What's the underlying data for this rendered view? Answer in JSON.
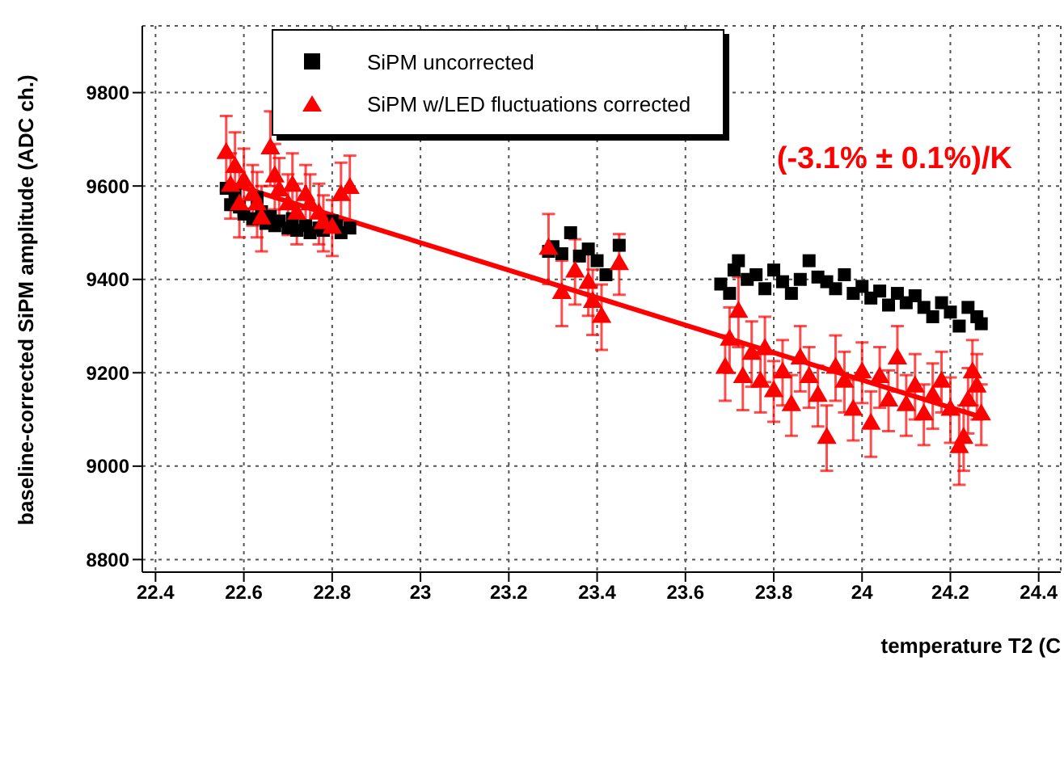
{
  "chart_data": {
    "type": "scatter",
    "xlabel": "temperature T2 (C",
    "ylabel": "baseline-corrected SiPM amplitude (ADC ch.)",
    "annotations": [
      "(-3.1% ± 0.1%)/K"
    ],
    "xlim": [
      22.37,
      24.45
    ],
    "ylim": [
      8773,
      9943
    ],
    "xticks": [
      22.4,
      22.6,
      22.8,
      23,
      23.2,
      23.4,
      23.6,
      23.8,
      24,
      24.2,
      24.4
    ],
    "yticks": [
      8800,
      9000,
      9200,
      9400,
      9600,
      9800
    ],
    "grid": true,
    "legend": "top",
    "series": [
      {
        "name": "SiPM uncorrected",
        "color": "#000000",
        "marker": "square",
        "x": [
          22.56,
          22.57,
          22.58,
          22.59,
          22.6,
          22.62,
          22.63,
          22.64,
          22.65,
          22.66,
          22.67,
          22.68,
          22.7,
          22.71,
          22.72,
          22.74,
          22.75,
          22.77,
          22.78,
          22.8,
          22.81,
          22.82,
          22.84,
          23.29,
          23.3,
          23.32,
          23.34,
          23.36,
          23.38,
          23.4,
          23.42,
          23.45,
          23.68,
          23.7,
          23.71,
          23.72,
          23.74,
          23.76,
          23.78,
          23.8,
          23.82,
          23.84,
          23.86,
          23.88,
          23.9,
          23.92,
          23.94,
          23.96,
          23.98,
          24.0,
          24.02,
          24.04,
          24.06,
          24.08,
          24.1,
          24.12,
          24.14,
          24.16,
          24.18,
          24.2,
          24.22,
          24.24,
          24.26,
          24.27
        ],
        "values": [
          9595,
          9560,
          9580,
          9555,
          9540,
          9530,
          9575,
          9545,
          9520,
          9535,
          9515,
          9525,
          9510,
          9530,
          9505,
          9515,
          9500,
          9510,
          9505,
          9525,
          9515,
          9500,
          9510,
          9460,
          9470,
          9455,
          9500,
          9450,
          9465,
          9440,
          9410,
          9473,
          9390,
          9370,
          9420,
          9440,
          9400,
          9410,
          9380,
          9420,
          9395,
          9370,
          9400,
          9440,
          9405,
          9395,
          9380,
          9410,
          9370,
          9385,
          9360,
          9375,
          9345,
          9370,
          9350,
          9365,
          9340,
          9320,
          9350,
          9330,
          9300,
          9340,
          9320,
          9305
        ]
      },
      {
        "name": "SiPM w/LED fluctuations corrected",
        "color": "#ff0000",
        "marker": "triangle",
        "x": [
          22.56,
          22.57,
          22.58,
          22.59,
          22.6,
          22.62,
          22.63,
          22.64,
          22.66,
          22.67,
          22.68,
          22.7,
          22.71,
          22.72,
          22.74,
          22.75,
          22.77,
          22.78,
          22.8,
          22.82,
          22.84,
          23.29,
          23.32,
          23.35,
          23.38,
          23.39,
          23.41,
          23.45,
          23.69,
          23.7,
          23.72,
          23.73,
          23.75,
          23.77,
          23.78,
          23.8,
          23.82,
          23.84,
          23.86,
          23.88,
          23.9,
          23.92,
          23.94,
          23.96,
          23.98,
          24.0,
          24.02,
          24.04,
          24.06,
          24.08,
          24.1,
          24.12,
          24.14,
          24.16,
          24.18,
          24.2,
          24.22,
          24.23,
          24.24,
          24.25,
          24.26,
          24.27
        ],
        "values": [
          9670,
          9600,
          9640,
          9560,
          9610,
          9580,
          9560,
          9530,
          9680,
          9620,
          9590,
          9560,
          9600,
          9540,
          9580,
          9560,
          9540,
          9520,
          9510,
          9580,
          9595,
          9465,
          9370,
          9416,
          9392,
          9351,
          9319,
          9432,
          9210,
          9270,
          9330,
          9190,
          9240,
          9180,
          9250,
          9160,
          9200,
          9130,
          9230,
          9190,
          9150,
          9060,
          9210,
          9180,
          9120,
          9200,
          9090,
          9190,
          9140,
          9230,
          9130,
          9170,
          9110,
          9150,
          9180,
          9120,
          9040,
          9060,
          9140,
          9200,
          9170,
          9110
        ],
        "errors": [
          80,
          70,
          75,
          70,
          70,
          65,
          70,
          70,
          80,
          70,
          70,
          65,
          70,
          65,
          65,
          65,
          65,
          60,
          60,
          70,
          70,
          75,
          70,
          70,
          70,
          70,
          70,
          65,
          70,
          70,
          75,
          70,
          70,
          65,
          70,
          65,
          70,
          65,
          70,
          65,
          65,
          70,
          70,
          65,
          65,
          65,
          70,
          65,
          65,
          70,
          65,
          70,
          65,
          70,
          65,
          70,
          80,
          70,
          70,
          70,
          70,
          65
        ]
      },
      {
        "type": "line",
        "color": "#ff0000",
        "x": [
          22.56,
          24.27
        ],
        "values": [
          9608,
          9105
        ]
      }
    ]
  }
}
